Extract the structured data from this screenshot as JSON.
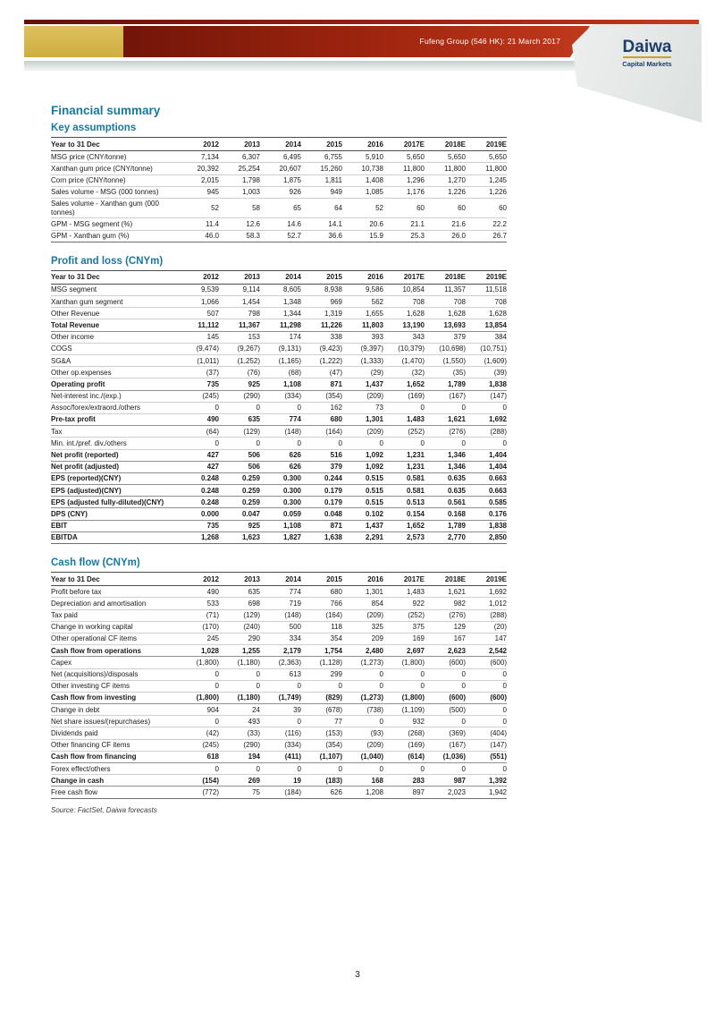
{
  "header": {
    "banner_title": "Fufeng Group (546 HK): 21 March 2017",
    "logo_title": "Daiwa",
    "logo_subtitle": "Capital Markets"
  },
  "page": {
    "title": "Financial summary",
    "source_note": "Source: FactSet, Daiwa forecasts",
    "page_number": "3"
  },
  "colors": {
    "accent_teal": "#1779a0",
    "banner_red_dark": "#5c0f05",
    "banner_red_bright": "#c0391d",
    "gold_block": "#d5b54b",
    "logo_navy": "#1d3d6d",
    "logo_underline_gold": "#c8a22e"
  },
  "tables": [
    {
      "title": "Key assumptions",
      "columns": [
        "Year to 31 Dec",
        "2012",
        "2013",
        "2014",
        "2015",
        "2016",
        "2017E",
        "2018E",
        "2019E"
      ],
      "rows": [
        {
          "label": "MSG price (CNY/tonne)",
          "bold": false,
          "values": [
            "7,134",
            "6,307",
            "6,495",
            "6,755",
            "5,910",
            "5,650",
            "5,650",
            "5,650"
          ]
        },
        {
          "label": "Xanthan gum price (CNY/tonne)",
          "bold": false,
          "values": [
            "20,392",
            "25,254",
            "20,607",
            "15,260",
            "10,738",
            "11,800",
            "11,800",
            "11,800"
          ]
        },
        {
          "label": "Corn price (CNY/tonne)",
          "bold": false,
          "values": [
            "2,015",
            "1,798",
            "1,875",
            "1,811",
            "1,408",
            "1,296",
            "1,270",
            "1,245"
          ]
        },
        {
          "label": "Sales volume - MSG (000 tonnes)",
          "bold": false,
          "values": [
            "945",
            "1,003",
            "926",
            "949",
            "1,085",
            "1,176",
            "1,226",
            "1,226"
          ]
        },
        {
          "label": "Sales volume - Xanthan gum (000 tonnes)",
          "bold": false,
          "values": [
            "52",
            "58",
            "65",
            "64",
            "52",
            "60",
            "60",
            "60"
          ]
        },
        {
          "label": "GPM - MSG segment (%)",
          "bold": false,
          "values": [
            "11.4",
            "12.6",
            "14.6",
            "14.1",
            "20.6",
            "21.1",
            "21.6",
            "22.2"
          ]
        },
        {
          "label": "GPM - Xanthan gum (%)",
          "bold": false,
          "values": [
            "46.0",
            "58.3",
            "52.7",
            "36.6",
            "15.9",
            "25.3",
            "26.0",
            "26.7"
          ]
        }
      ]
    },
    {
      "title": "Profit and loss (CNYm)",
      "columns": [
        "Year to 31 Dec",
        "2012",
        "2013",
        "2014",
        "2015",
        "2016",
        "2017E",
        "2018E",
        "2019E"
      ],
      "rows": [
        {
          "label": "MSG segment",
          "bold": false,
          "values": [
            "9,539",
            "9,114",
            "8,605",
            "8,938",
            "9,586",
            "10,854",
            "11,357",
            "11,518"
          ]
        },
        {
          "label": "Xanthan gum segment",
          "bold": false,
          "values": [
            "1,066",
            "1,454",
            "1,348",
            "969",
            "562",
            "708",
            "708",
            "708"
          ]
        },
        {
          "label": "Other Revenue",
          "bold": false,
          "values": [
            "507",
            "798",
            "1,344",
            "1,319",
            "1,655",
            "1,628",
            "1,628",
            "1,628"
          ]
        },
        {
          "label": "Total Revenue",
          "bold": true,
          "values": [
            "11,112",
            "11,367",
            "11,298",
            "11,226",
            "11,803",
            "13,190",
            "13,693",
            "13,854"
          ]
        },
        {
          "label": "Other income",
          "bold": false,
          "values": [
            "145",
            "153",
            "174",
            "338",
            "393",
            "343",
            "379",
            "384"
          ]
        },
        {
          "label": "COGS",
          "bold": false,
          "values": [
            "(9,474)",
            "(9,267)",
            "(9,131)",
            "(9,423)",
            "(9,397)",
            "(10,379)",
            "(10,698)",
            "(10,751)"
          ]
        },
        {
          "label": "SG&A",
          "bold": false,
          "values": [
            "(1,011)",
            "(1,252)",
            "(1,165)",
            "(1,222)",
            "(1,333)",
            "(1,470)",
            "(1,550)",
            "(1,609)"
          ]
        },
        {
          "label": "Other op.expenses",
          "bold": false,
          "values": [
            "(37)",
            "(76)",
            "(68)",
            "(47)",
            "(29)",
            "(32)",
            "(35)",
            "(39)"
          ]
        },
        {
          "label": "Operating profit",
          "bold": true,
          "values": [
            "735",
            "925",
            "1,108",
            "871",
            "1,437",
            "1,652",
            "1,789",
            "1,838"
          ]
        },
        {
          "label": "Net-interest inc./(exp.)",
          "bold": false,
          "values": [
            "(245)",
            "(290)",
            "(334)",
            "(354)",
            "(209)",
            "(169)",
            "(167)",
            "(147)"
          ]
        },
        {
          "label": "Assoc/forex/extraord./others",
          "bold": false,
          "values": [
            "0",
            "0",
            "0",
            "162",
            "73",
            "0",
            "0",
            "0"
          ]
        },
        {
          "label": "Pre-tax profit",
          "bold": true,
          "values": [
            "490",
            "635",
            "774",
            "680",
            "1,301",
            "1,483",
            "1,621",
            "1,692"
          ]
        },
        {
          "label": "Tax",
          "bold": false,
          "values": [
            "(64)",
            "(129)",
            "(148)",
            "(164)",
            "(209)",
            "(252)",
            "(276)",
            "(288)"
          ]
        },
        {
          "label": "Min. int./pref. div./others",
          "bold": false,
          "values": [
            "0",
            "0",
            "0",
            "0",
            "0",
            "0",
            "0",
            "0"
          ]
        },
        {
          "label": "Net profit (reported)",
          "bold": true,
          "values": [
            "427",
            "506",
            "626",
            "516",
            "1,092",
            "1,231",
            "1,346",
            "1,404"
          ]
        },
        {
          "label": "Net profit (adjusted)",
          "bold": true,
          "values": [
            "427",
            "506",
            "626",
            "379",
            "1,092",
            "1,231",
            "1,346",
            "1,404"
          ]
        },
        {
          "label": "EPS (reported)(CNY)",
          "bold": true,
          "values": [
            "0.248",
            "0.259",
            "0.300",
            "0.244",
            "0.515",
            "0.581",
            "0.635",
            "0.663"
          ]
        },
        {
          "label": "EPS (adjusted)(CNY)",
          "bold": true,
          "values": [
            "0.248",
            "0.259",
            "0.300",
            "0.179",
            "0.515",
            "0.581",
            "0.635",
            "0.663"
          ]
        },
        {
          "label": "EPS (adjusted fully-diluted)(CNY)",
          "bold": true,
          "values": [
            "0.248",
            "0.259",
            "0.300",
            "0.179",
            "0.515",
            "0.513",
            "0.561",
            "0.585"
          ]
        },
        {
          "label": "DPS (CNY)",
          "bold": true,
          "values": [
            "0.000",
            "0.047",
            "0.059",
            "0.048",
            "0.102",
            "0.154",
            "0.168",
            "0.176"
          ]
        },
        {
          "label": "EBIT",
          "bold": true,
          "values": [
            "735",
            "925",
            "1,108",
            "871",
            "1,437",
            "1,652",
            "1,789",
            "1,838"
          ]
        },
        {
          "label": "EBITDA",
          "bold": true,
          "values": [
            "1,268",
            "1,623",
            "1,827",
            "1,638",
            "2,291",
            "2,573",
            "2,770",
            "2,850"
          ]
        }
      ]
    },
    {
      "title": "Cash flow (CNYm)",
      "columns": [
        "Year to 31 Dec",
        "2012",
        "2013",
        "2014",
        "2015",
        "2016",
        "2017E",
        "2018E",
        "2019E"
      ],
      "rows": [
        {
          "label": "Profit before tax",
          "bold": false,
          "values": [
            "490",
            "635",
            "774",
            "680",
            "1,301",
            "1,483",
            "1,621",
            "1,692"
          ]
        },
        {
          "label": "Depreciation and amortisation",
          "bold": false,
          "values": [
            "533",
            "698",
            "719",
            "766",
            "854",
            "922",
            "982",
            "1,012"
          ]
        },
        {
          "label": "Tax paid",
          "bold": false,
          "values": [
            "(71)",
            "(129)",
            "(148)",
            "(164)",
            "(209)",
            "(252)",
            "(276)",
            "(288)"
          ]
        },
        {
          "label": "Change in working capital",
          "bold": false,
          "values": [
            "(170)",
            "(240)",
            "500",
            "118",
            "325",
            "375",
            "129",
            "(20)"
          ]
        },
        {
          "label": "Other operational CF items",
          "bold": false,
          "values": [
            "245",
            "290",
            "334",
            "354",
            "209",
            "169",
            "167",
            "147"
          ]
        },
        {
          "label": "Cash flow from operations",
          "bold": true,
          "values": [
            "1,028",
            "1,255",
            "2,179",
            "1,754",
            "2,480",
            "2,697",
            "2,623",
            "2,542"
          ]
        },
        {
          "label": "Capex",
          "bold": false,
          "values": [
            "(1,800)",
            "(1,180)",
            "(2,363)",
            "(1,128)",
            "(1,273)",
            "(1,800)",
            "(600)",
            "(600)"
          ]
        },
        {
          "label": "Net (acquisitions)/disposals",
          "bold": false,
          "values": [
            "0",
            "0",
            "613",
            "299",
            "0",
            "0",
            "0",
            "0"
          ]
        },
        {
          "label": "Other investing CF items",
          "bold": false,
          "values": [
            "0",
            "0",
            "0",
            "0",
            "0",
            "0",
            "0",
            "0"
          ]
        },
        {
          "label": "Cash flow from investing",
          "bold": true,
          "values": [
            "(1,800)",
            "(1,180)",
            "(1,749)",
            "(829)",
            "(1,273)",
            "(1,800)",
            "(600)",
            "(600)"
          ]
        },
        {
          "label": "Change in debt",
          "bold": false,
          "values": [
            "904",
            "24",
            "39",
            "(678)",
            "(738)",
            "(1,109)",
            "(500)",
            "0"
          ]
        },
        {
          "label": "Net share issues/(repurchases)",
          "bold": false,
          "values": [
            "0",
            "493",
            "0",
            "77",
            "0",
            "932",
            "0",
            "0"
          ]
        },
        {
          "label": "Dividends paid",
          "bold": false,
          "values": [
            "(42)",
            "(33)",
            "(116)",
            "(153)",
            "(93)",
            "(268)",
            "(369)",
            "(404)"
          ]
        },
        {
          "label": "Other financing CF items",
          "bold": false,
          "values": [
            "(245)",
            "(290)",
            "(334)",
            "(354)",
            "(209)",
            "(169)",
            "(167)",
            "(147)"
          ]
        },
        {
          "label": "Cash flow from financing",
          "bold": true,
          "values": [
            "618",
            "194",
            "(411)",
            "(1,107)",
            "(1,040)",
            "(614)",
            "(1,036)",
            "(551)"
          ]
        },
        {
          "label": "Forex effect/others",
          "bold": false,
          "values": [
            "0",
            "0",
            "0",
            "0",
            "0",
            "0",
            "0",
            "0"
          ]
        },
        {
          "label": "Change in cash",
          "bold": true,
          "values": [
            "(154)",
            "269",
            "19",
            "(183)",
            "168",
            "283",
            "987",
            "1,392"
          ]
        },
        {
          "label": "Free cash flow",
          "bold": false,
          "values": [
            "(772)",
            "75",
            "(184)",
            "626",
            "1,208",
            "897",
            "2,023",
            "1,942"
          ]
        }
      ]
    }
  ]
}
